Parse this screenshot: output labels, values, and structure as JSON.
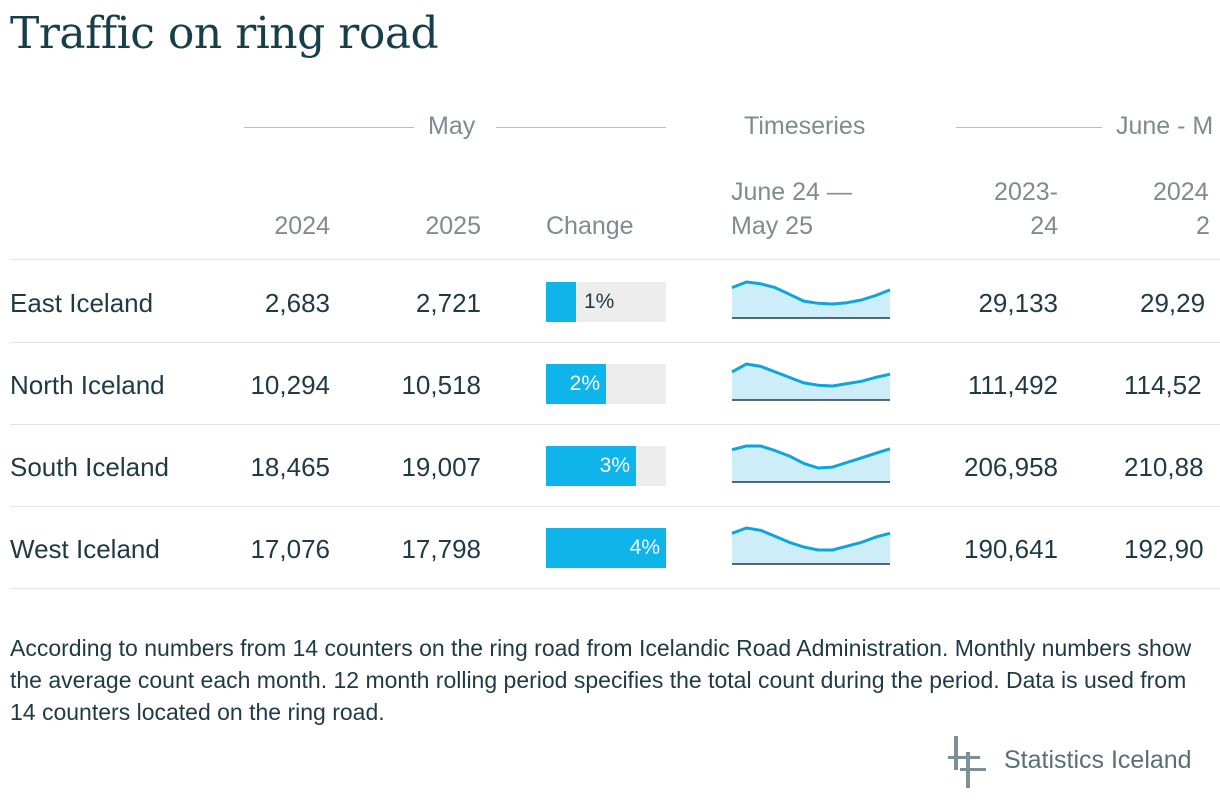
{
  "title": "Traffic on ring road",
  "groups": {
    "may": "May",
    "timeseries": "Timeseries",
    "rolling": "June - M"
  },
  "columns": {
    "y2024": "2024",
    "y2025": "2025",
    "change": "Change",
    "ts_line1": "June 24 —",
    "ts_line2": "May 25",
    "r1_line1": "2023-",
    "r1_line2": "24",
    "r2_line1": "2024",
    "r2_line2": "2"
  },
  "chart_data": {
    "type": "table",
    "title": "Traffic on ring road",
    "columns": [
      "May 2024",
      "May 2025",
      "Change",
      "Timeseries June 24 — May 25",
      "June - M 2023-24",
      "June - M 2024"
    ],
    "rows": [
      {
        "region": "East Iceland",
        "may_2024": "2,683",
        "may_2025": "2,721",
        "change": "1%",
        "change_value": 1,
        "rolling_2023_24": "29,133",
        "rolling_2024_25": "29,29",
        "timeseries": [
          2450,
          2700,
          2620,
          2450,
          2150,
          1850,
          1750,
          1720,
          1780,
          1900,
          2100,
          2350
        ]
      },
      {
        "region": "North Iceland",
        "may_2024": "10,294",
        "may_2025": "10,518",
        "change": "2%",
        "change_value": 2,
        "rolling_2023_24": "111,492",
        "rolling_2024_25": "114,52",
        "timeseries": [
          9300,
          10300,
          10000,
          9300,
          8600,
          7900,
          7600,
          7500,
          7800,
          8100,
          8600,
          9000
        ]
      },
      {
        "region": "South Iceland",
        "may_2024": "18,465",
        "may_2025": "19,007",
        "change": "3%",
        "change_value": 3,
        "rolling_2023_24": "206,958",
        "rolling_2024_25": "210,88",
        "timeseries": [
          17400,
          17800,
          17800,
          17300,
          16700,
          15900,
          15400,
          15500,
          16000,
          16500,
          17000,
          17500
        ]
      },
      {
        "region": "West Iceland",
        "may_2024": "17,076",
        "may_2025": "17,798",
        "change": "4%",
        "change_value": 4,
        "rolling_2023_24": "190,641",
        "rolling_2024_25": "192,90",
        "timeseries": [
          15000,
          15700,
          15400,
          14600,
          13800,
          13200,
          12800,
          12800,
          13300,
          13800,
          14500,
          15000
        ]
      }
    ],
    "change_max": 4,
    "colors": {
      "bar": "#0fb4ea",
      "bar_track": "#ededed",
      "spark_line": "#0ea5df",
      "spark_fill": "#cdeef9"
    }
  },
  "note": "According to numbers from 14 counters on the ring road from Icelandic Road Administration. Monthly numbers show the average count each month. 12 month rolling period specifies the total count during the period. Data is used from 14 counters located on the ring road.",
  "logo": {
    "text": "Statistics Iceland"
  }
}
